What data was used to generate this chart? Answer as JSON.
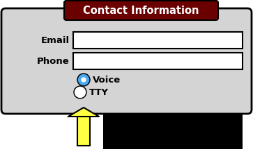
{
  "bg_color": "#ffffff",
  "form_bg": "#d4d4d4",
  "form_border": "#000000",
  "title_text": "Contact Information",
  "title_bg": "#6b0000",
  "title_fg": "#ffffff",
  "email_label": "Email",
  "phone_label": "Phone",
  "voice_label": "Voice",
  "tty_label": "TTY",
  "input_bg": "#ffffff",
  "input_border": "#000000",
  "radio_selected_fill": "#4aa8f0",
  "radio_selected_border": "#000000",
  "radio_unselected_fill": "#ffffff",
  "radio_unselected_border": "#000000",
  "arrow_color": "#ffff44",
  "arrow_border": "#000000",
  "black_bar_color": "#000000",
  "label_fontsize": 9.5,
  "title_fontsize": 10.5,
  "fig_w": 3.63,
  "fig_h": 2.22,
  "dpi": 100
}
